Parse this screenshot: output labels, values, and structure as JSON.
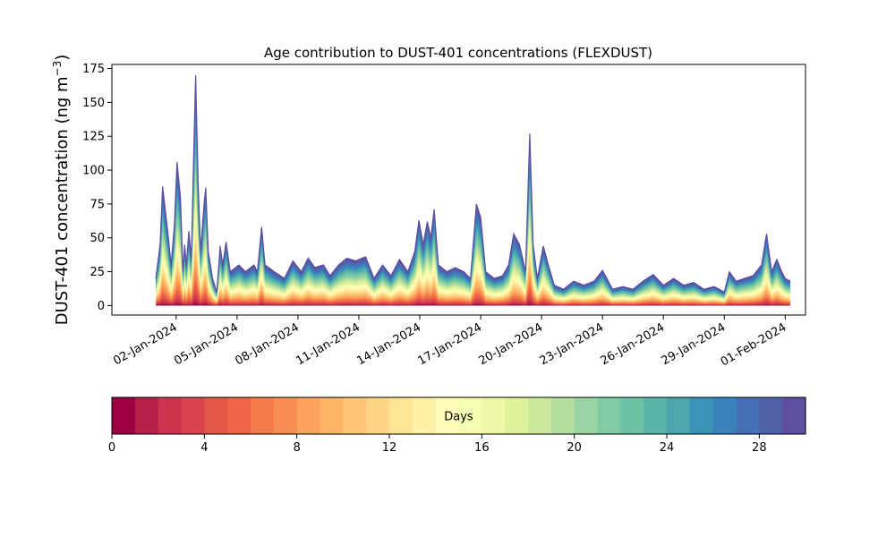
{
  "chart_data": {
    "type": "area",
    "stacked": true,
    "title": "Age contribution to DUST-401 concentrations (FLEXDUST)",
    "ylabel": "DUST-401 concentration (ng m",
    "ylabel_unit_exponent": "−3",
    "ylabel_close": ")",
    "ylim": [
      -7,
      178
    ],
    "yticks": [
      0,
      25,
      50,
      75,
      100,
      125,
      150,
      175
    ],
    "xlim": [
      "2023-12-29T20:00",
      "2024-02-02T00:00"
    ],
    "xticks": [
      {
        "date": "2024-01-02",
        "label": "02-Jan-2024"
      },
      {
        "date": "2024-01-05",
        "label": "05-Jan-2024"
      },
      {
        "date": "2024-01-08",
        "label": "08-Jan-2024"
      },
      {
        "date": "2024-01-11",
        "label": "11-Jan-2024"
      },
      {
        "date": "2024-01-14",
        "label": "14-Jan-2024"
      },
      {
        "date": "2024-01-17",
        "label": "17-Jan-2024"
      },
      {
        "date": "2024-01-20",
        "label": "20-Jan-2024"
      },
      {
        "date": "2024-01-23",
        "label": "23-Jan-2024"
      },
      {
        "date": "2024-01-26",
        "label": "26-Jan-2024"
      },
      {
        "date": "2024-01-29",
        "label": "29-Jan-2024"
      },
      {
        "date": "2024-02-01",
        "label": "01-Feb-2024"
      }
    ],
    "total_concentration": [
      {
        "t": "2024-01-01T00:00",
        "v": 20
      },
      {
        "t": "2024-01-01T05:00",
        "v": 45
      },
      {
        "t": "2024-01-01T08:00",
        "v": 88
      },
      {
        "t": "2024-01-01T14:00",
        "v": 55
      },
      {
        "t": "2024-01-01T18:00",
        "v": 30
      },
      {
        "t": "2024-01-01T22:00",
        "v": 60
      },
      {
        "t": "2024-01-02T01:00",
        "v": 106
      },
      {
        "t": "2024-01-02T05:00",
        "v": 80
      },
      {
        "t": "2024-01-02T08:00",
        "v": 25
      },
      {
        "t": "2024-01-02T10:00",
        "v": 45
      },
      {
        "t": "2024-01-02T12:00",
        "v": 30
      },
      {
        "t": "2024-01-02T15:00",
        "v": 55
      },
      {
        "t": "2024-01-02T18:00",
        "v": 35
      },
      {
        "t": "2024-01-02T21:00",
        "v": 120
      },
      {
        "t": "2024-01-02T23:00",
        "v": 170
      },
      {
        "t": "2024-01-03T02:00",
        "v": 90
      },
      {
        "t": "2024-01-03T05:00",
        "v": 40
      },
      {
        "t": "2024-01-03T09:00",
        "v": 75
      },
      {
        "t": "2024-01-03T11:00",
        "v": 87
      },
      {
        "t": "2024-01-03T14:00",
        "v": 40
      },
      {
        "t": "2024-01-03T19:00",
        "v": 20
      },
      {
        "t": "2024-01-04T00:00",
        "v": 10
      },
      {
        "t": "2024-01-04T04:00",
        "v": 44
      },
      {
        "t": "2024-01-04T07:00",
        "v": 30
      },
      {
        "t": "2024-01-04T11:00",
        "v": 47
      },
      {
        "t": "2024-01-04T16:00",
        "v": 25
      },
      {
        "t": "2024-01-05T02:00",
        "v": 30
      },
      {
        "t": "2024-01-05T10:00",
        "v": 25
      },
      {
        "t": "2024-01-05T20:00",
        "v": 30
      },
      {
        "t": "2024-01-06T00:00",
        "v": 25
      },
      {
        "t": "2024-01-06T05:00",
        "v": 58
      },
      {
        "t": "2024-01-06T09:00",
        "v": 30
      },
      {
        "t": "2024-01-06T20:00",
        "v": 25
      },
      {
        "t": "2024-01-07T08:00",
        "v": 20
      },
      {
        "t": "2024-01-07T18:00",
        "v": 33
      },
      {
        "t": "2024-01-08T04:00",
        "v": 25
      },
      {
        "t": "2024-01-08T12:00",
        "v": 35
      },
      {
        "t": "2024-01-08T20:00",
        "v": 28
      },
      {
        "t": "2024-01-09T06:00",
        "v": 30
      },
      {
        "t": "2024-01-09T14:00",
        "v": 22
      },
      {
        "t": "2024-01-10T00:00",
        "v": 30
      },
      {
        "t": "2024-01-10T10:00",
        "v": 35
      },
      {
        "t": "2024-01-10T20:00",
        "v": 33
      },
      {
        "t": "2024-01-11T08:00",
        "v": 36
      },
      {
        "t": "2024-01-11T18:00",
        "v": 20
      },
      {
        "t": "2024-01-12T04:00",
        "v": 30
      },
      {
        "t": "2024-01-12T14:00",
        "v": 22
      },
      {
        "t": "2024-01-13T00:00",
        "v": 34
      },
      {
        "t": "2024-01-13T10:00",
        "v": 25
      },
      {
        "t": "2024-01-13T18:00",
        "v": 40
      },
      {
        "t": "2024-01-13T23:00",
        "v": 63
      },
      {
        "t": "2024-01-14T04:00",
        "v": 45
      },
      {
        "t": "2024-01-14T09:00",
        "v": 62
      },
      {
        "t": "2024-01-14T13:00",
        "v": 50
      },
      {
        "t": "2024-01-14T17:00",
        "v": 71
      },
      {
        "t": "2024-01-14T22:00",
        "v": 30
      },
      {
        "t": "2024-01-15T08:00",
        "v": 25
      },
      {
        "t": "2024-01-15T18:00",
        "v": 28
      },
      {
        "t": "2024-01-16T04:00",
        "v": 25
      },
      {
        "t": "2024-01-16T12:00",
        "v": 20
      },
      {
        "t": "2024-01-16T19:00",
        "v": 75
      },
      {
        "t": "2024-01-17T00:00",
        "v": 65
      },
      {
        "t": "2024-01-17T06:00",
        "v": 25
      },
      {
        "t": "2024-01-17T16:00",
        "v": 20
      },
      {
        "t": "2024-01-18T02:00",
        "v": 22
      },
      {
        "t": "2024-01-18T09:00",
        "v": 30
      },
      {
        "t": "2024-01-18T15:00",
        "v": 53
      },
      {
        "t": "2024-01-18T22:00",
        "v": 45
      },
      {
        "t": "2024-01-19T05:00",
        "v": 25
      },
      {
        "t": "2024-01-19T10:00",
        "v": 127
      },
      {
        "t": "2024-01-19T14:00",
        "v": 45
      },
      {
        "t": "2024-01-19T19:00",
        "v": 20
      },
      {
        "t": "2024-01-20T02:00",
        "v": 44
      },
      {
        "t": "2024-01-20T08:00",
        "v": 30
      },
      {
        "t": "2024-01-20T15:00",
        "v": 15
      },
      {
        "t": "2024-01-21T02:00",
        "v": 12
      },
      {
        "t": "2024-01-21T14:00",
        "v": 18
      },
      {
        "t": "2024-01-22T02:00",
        "v": 15
      },
      {
        "t": "2024-01-22T14:00",
        "v": 18
      },
      {
        "t": "2024-01-23T00:00",
        "v": 26
      },
      {
        "t": "2024-01-23T12:00",
        "v": 12
      },
      {
        "t": "2024-01-24T00:00",
        "v": 14
      },
      {
        "t": "2024-01-24T12:00",
        "v": 12
      },
      {
        "t": "2024-01-25T00:00",
        "v": 18
      },
      {
        "t": "2024-01-25T12:00",
        "v": 23
      },
      {
        "t": "2024-01-26T00:00",
        "v": 15
      },
      {
        "t": "2024-01-26T12:00",
        "v": 20
      },
      {
        "t": "2024-01-27T00:00",
        "v": 15
      },
      {
        "t": "2024-01-27T12:00",
        "v": 17
      },
      {
        "t": "2024-01-28T00:00",
        "v": 12
      },
      {
        "t": "2024-01-28T12:00",
        "v": 14
      },
      {
        "t": "2024-01-29T00:00",
        "v": 10
      },
      {
        "t": "2024-01-29T06:00",
        "v": 25
      },
      {
        "t": "2024-01-29T14:00",
        "v": 18
      },
      {
        "t": "2024-01-30T00:00",
        "v": 20
      },
      {
        "t": "2024-01-30T10:00",
        "v": 22
      },
      {
        "t": "2024-01-30T20:00",
        "v": 30
      },
      {
        "t": "2024-01-31T02:00",
        "v": 53
      },
      {
        "t": "2024-01-31T08:00",
        "v": 25
      },
      {
        "t": "2024-01-31T14:00",
        "v": 34
      },
      {
        "t": "2024-01-31T20:00",
        "v": 25
      },
      {
        "t": "2024-02-01T00:00",
        "v": 20
      },
      {
        "t": "2024-02-01T06:00",
        "v": 18
      }
    ],
    "colorbar": {
      "label": "Days",
      "range": [
        0,
        30
      ],
      "ticks": [
        0,
        4,
        8,
        12,
        16,
        20,
        24,
        28
      ],
      "colors": [
        "#9e0142",
        "#b51f48",
        "#cc334c",
        "#d9444e",
        "#e4584a",
        "#ee6446",
        "#f57b4a",
        "#f98e52",
        "#fca25c",
        "#fdb466",
        "#fec574",
        "#fed584",
        "#fee593",
        "#fff1a6",
        "#fffbb8",
        "#f7fcb3",
        "#eef8a7",
        "#dff19b",
        "#cbe89d",
        "#b5df9f",
        "#9bd4a4",
        "#80cba4",
        "#6dc1a4",
        "#5bb4a8",
        "#4ca6ad",
        "#3c93b8",
        "#3a82bc",
        "#4370b4",
        "#5061aa",
        "#5e4fa2"
      ]
    }
  }
}
